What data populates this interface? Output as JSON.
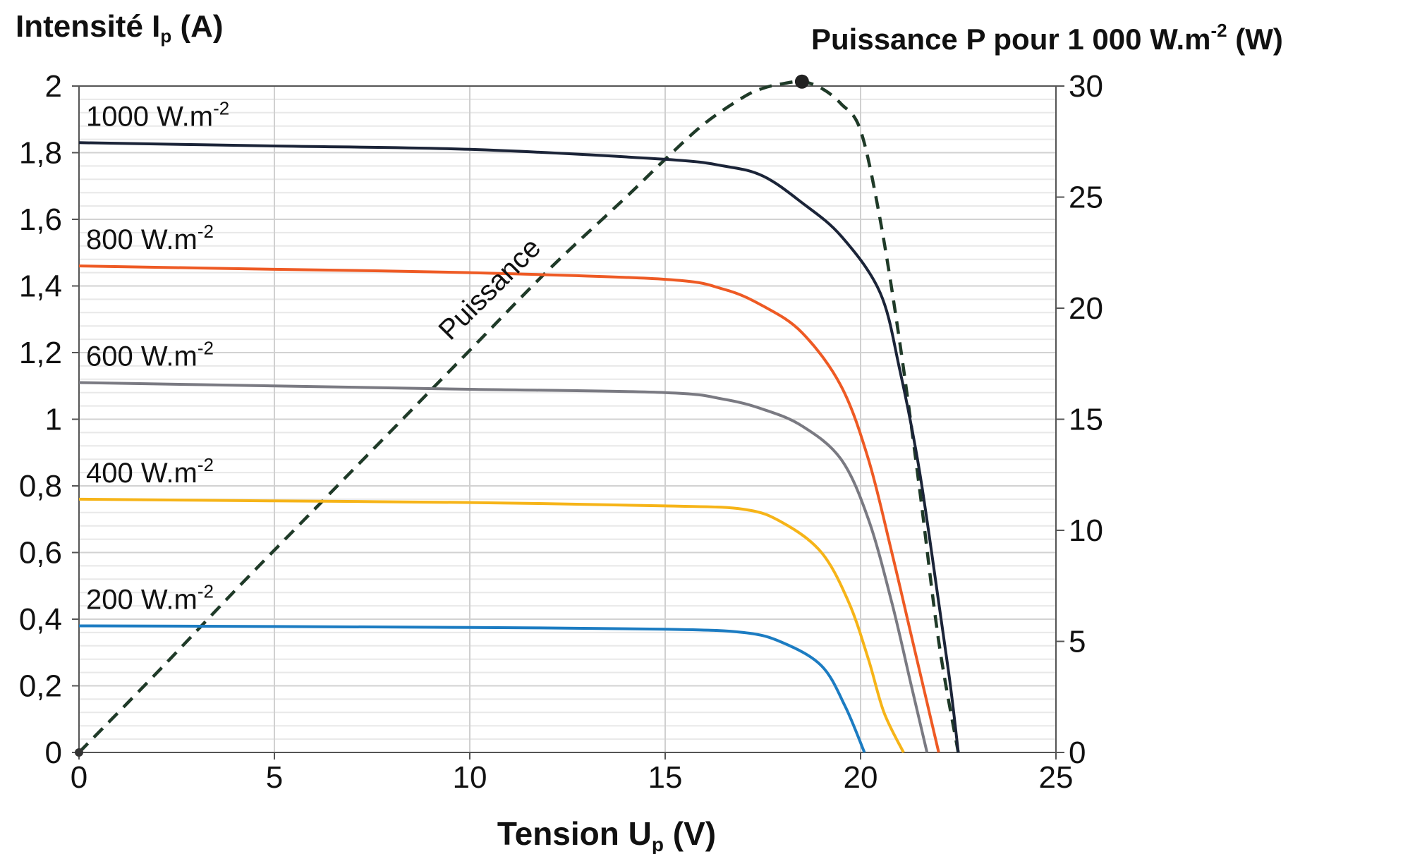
{
  "chart_data": {
    "type": "line",
    "left_axis_title": "Intensité I",
    "left_axis_sub": "p",
    "left_axis_unit": " (A)",
    "right_axis_title": "Puissance P pour 1 000 W.m",
    "right_axis_sup": "-2",
    "right_axis_unit": " (W)",
    "x_axis_title": "Tension U",
    "x_axis_sub": "p",
    "x_axis_unit": " (V)",
    "xlim": [
      0,
      25
    ],
    "ylim_left": [
      0,
      2
    ],
    "ylim_right": [
      0,
      30
    ],
    "x_ticks": [
      "0",
      "5",
      "10",
      "15",
      "20",
      "25"
    ],
    "y_left_ticks": [
      "0",
      "0,2",
      "0,4",
      "0,6",
      "0,8",
      "1",
      "1,2",
      "1,4",
      "1,6",
      "1,8",
      "2"
    ],
    "y_right_ticks": [
      "0",
      "5",
      "10",
      "15",
      "20",
      "25",
      "30"
    ],
    "grid": true,
    "series": [
      {
        "name": "1000 W.m",
        "name_sup": "-2",
        "color": "#1b2438",
        "x": [
          0,
          5,
          10,
          15,
          16.5,
          17.5,
          18.5,
          19.5,
          20.5,
          21,
          21.5,
          22,
          22.3,
          22.5
        ],
        "y": [
          1.83,
          1.82,
          1.81,
          1.78,
          1.76,
          1.73,
          1.65,
          1.55,
          1.38,
          1.15,
          0.85,
          0.45,
          0.2,
          0
        ]
      },
      {
        "name": "800 W.m",
        "name_sup": "-2",
        "color": "#ee5a24",
        "x": [
          0,
          5,
          10,
          15,
          16.5,
          17.5,
          18.5,
          19.5,
          20.2,
          20.8,
          21.3,
          21.7,
          22
        ],
        "y": [
          1.46,
          1.45,
          1.44,
          1.42,
          1.39,
          1.34,
          1.26,
          1.1,
          0.88,
          0.6,
          0.35,
          0.15,
          0
        ]
      },
      {
        "name": "600 W.m",
        "name_sup": "-2",
        "color": "#7a7a82",
        "x": [
          0,
          5,
          10,
          15,
          16.5,
          17.5,
          18.5,
          19.5,
          20.2,
          20.8,
          21.3,
          21.7
        ],
        "y": [
          1.11,
          1.1,
          1.09,
          1.08,
          1.06,
          1.03,
          0.98,
          0.88,
          0.7,
          0.45,
          0.2,
          0
        ]
      },
      {
        "name": "400 W.m",
        "name_sup": "-2",
        "color": "#f6b418",
        "x": [
          0,
          5,
          10,
          15,
          17,
          18,
          19,
          19.7,
          20.2,
          20.6,
          21.1
        ],
        "y": [
          0.76,
          0.755,
          0.75,
          0.74,
          0.73,
          0.69,
          0.6,
          0.45,
          0.28,
          0.12,
          0
        ]
      },
      {
        "name": "200 W.m",
        "name_sup": "-2",
        "color": "#1c7cc2",
        "x": [
          0,
          5,
          10,
          15,
          17,
          18,
          19,
          19.6,
          20.1
        ],
        "y": [
          0.38,
          0.378,
          0.375,
          0.37,
          0.36,
          0.33,
          0.26,
          0.14,
          0
        ]
      }
    ],
    "power_series": {
      "name": "Puissance",
      "axis": "right",
      "style": "dashed",
      "color": "#1f3a28",
      "x": [
        0,
        2,
        4,
        6,
        8,
        10,
        12,
        14,
        15,
        16,
        17,
        17.5,
        18,
        18.5,
        19,
        19.5,
        20,
        20.5,
        21,
        21.5,
        22,
        22.5
      ],
      "y": [
        0,
        3.6,
        7.3,
        10.9,
        14.5,
        18.1,
        21.7,
        25,
        26.7,
        28.3,
        29.5,
        29.9,
        30.1,
        30.2,
        29.9,
        29.2,
        28,
        24,
        18.5,
        12,
        5,
        0
      ]
    },
    "max_power_point": {
      "x": 18.5,
      "y": 30.2
    }
  }
}
